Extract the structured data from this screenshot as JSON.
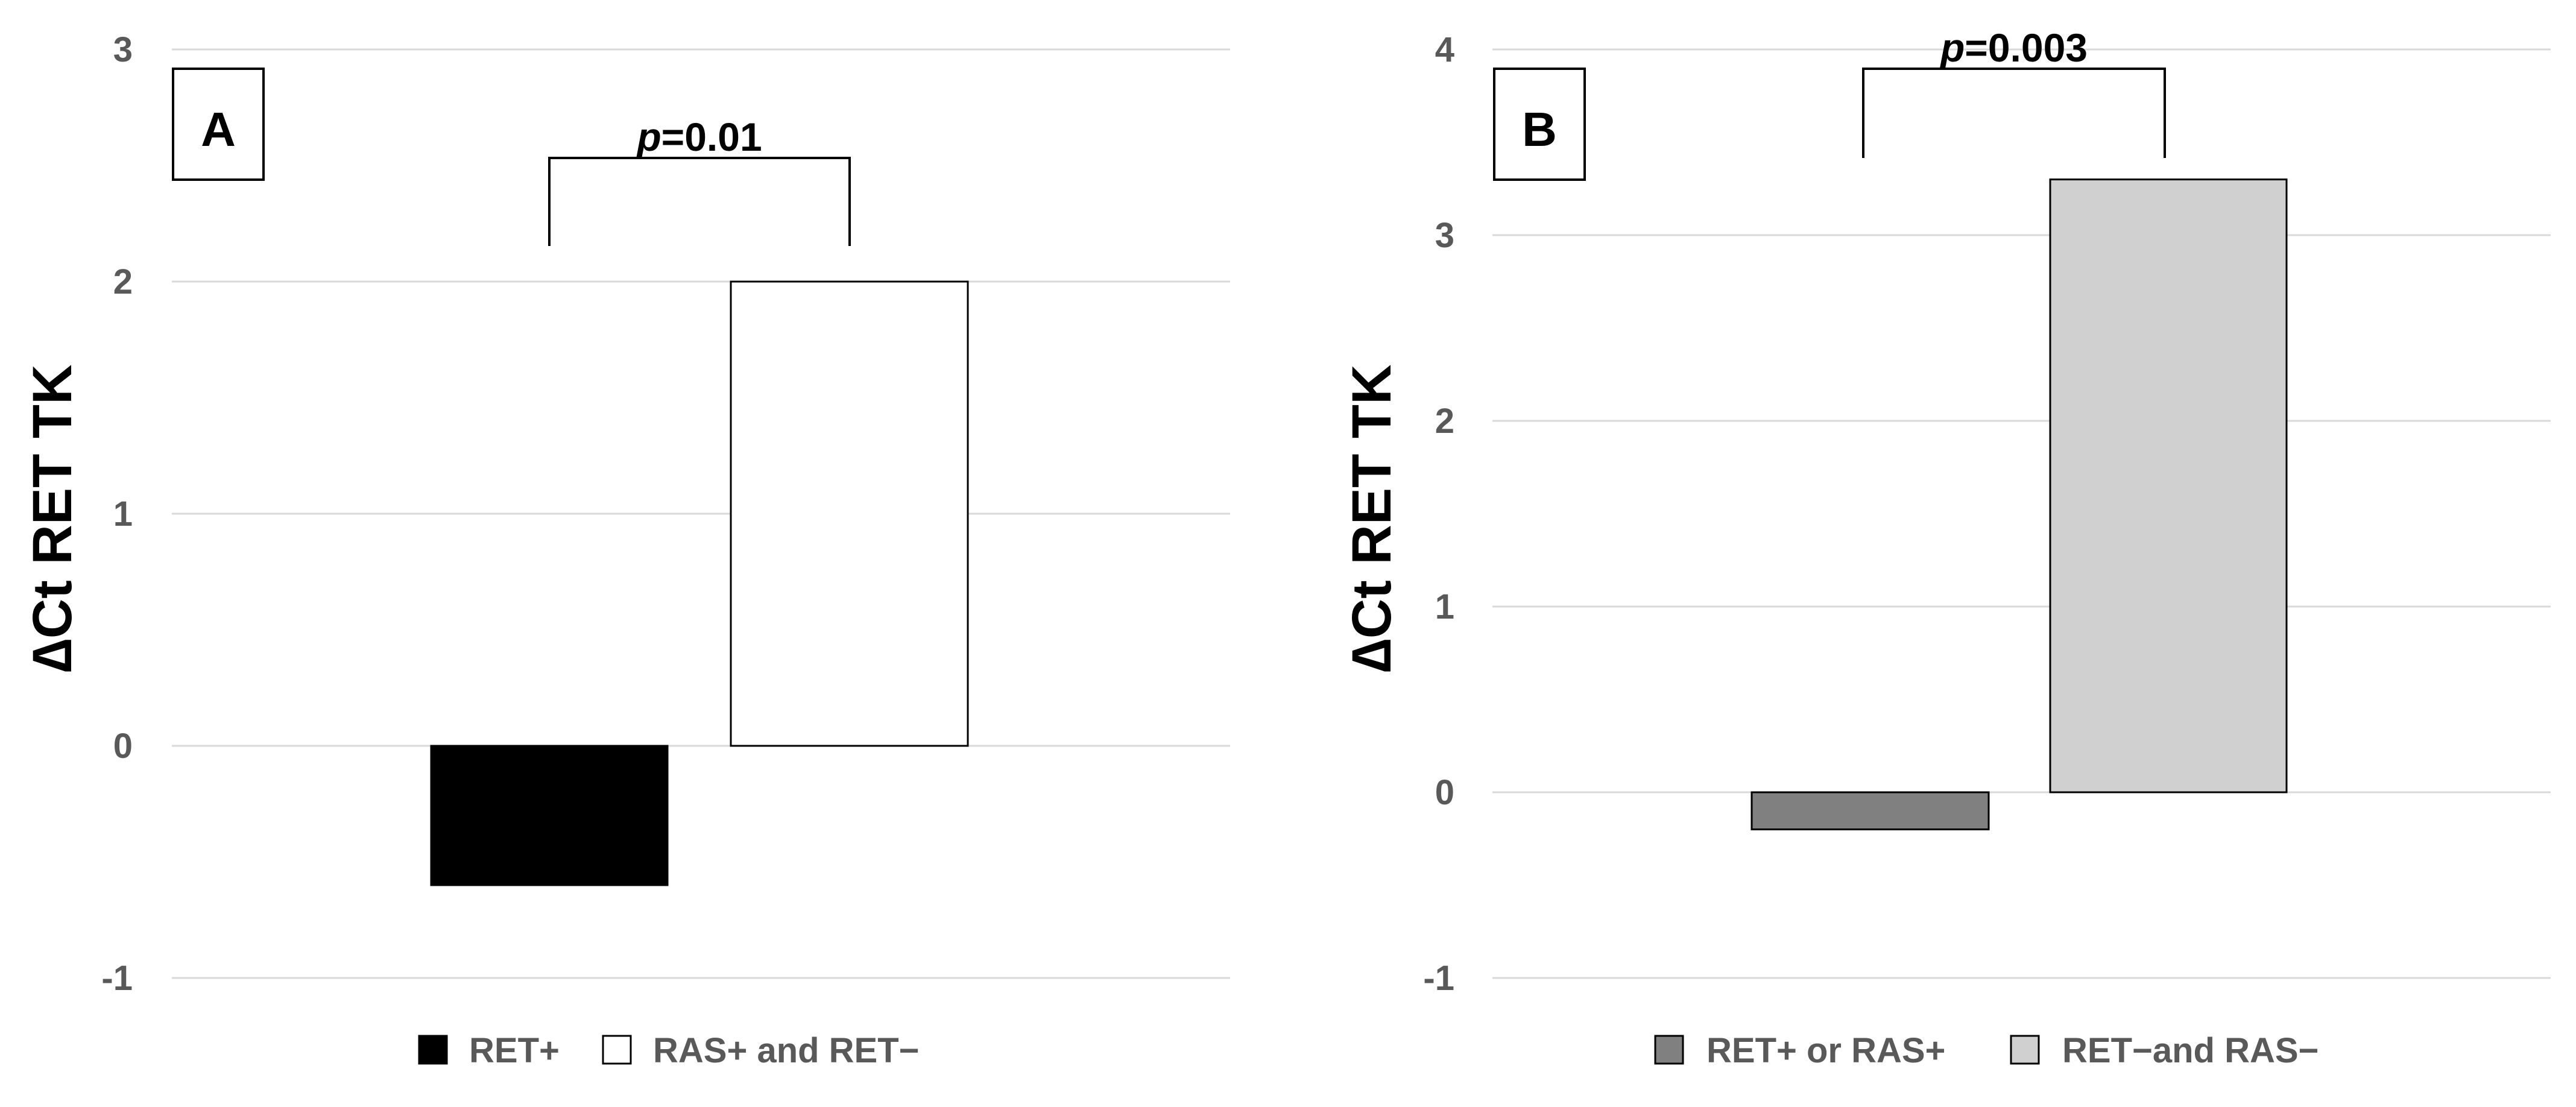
{
  "chart_data": [
    {
      "type": "bar",
      "panel_label": "A",
      "ylabel": "∆Ct RET TK",
      "ylim": [
        -1,
        3
      ],
      "yticks": [
        -1,
        0,
        1,
        2,
        3
      ],
      "grid": true,
      "legend_position": "bottom",
      "series": [
        {
          "name": "RET+",
          "value": -0.6,
          "color": "#000000"
        },
        {
          "name": "RAS+ and RET−",
          "value": 2.0,
          "color": "#ffffff"
        }
      ],
      "annotation": {
        "p_symbol": "p",
        "p_rest": "=0.01"
      }
    },
    {
      "type": "bar",
      "panel_label": "B",
      "ylabel": "∆Ct RET TK",
      "ylim": [
        -1,
        4
      ],
      "yticks": [
        -1,
        0,
        1,
        2,
        3,
        4
      ],
      "grid": true,
      "legend_position": "bottom",
      "series": [
        {
          "name": "RET+ or RAS+",
          "value": -0.2,
          "color": "#808080"
        },
        {
          "name": "RET−and RAS−",
          "value": 3.3,
          "color": "#d0d0d0"
        }
      ],
      "annotation": {
        "p_symbol": "p",
        "p_rest": "=0.003"
      }
    }
  ]
}
